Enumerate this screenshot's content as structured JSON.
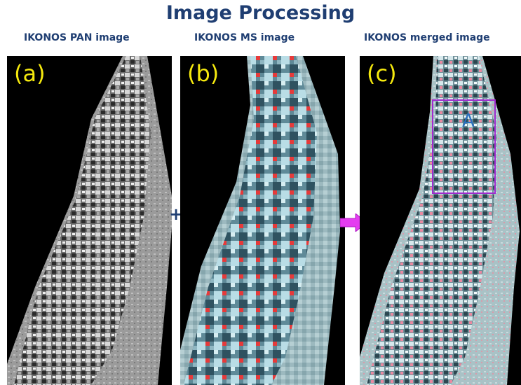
{
  "title": "Image Processing",
  "panels": [
    {
      "label": "(a)",
      "caption": "IKONOS PAN image"
    },
    {
      "label": "(b)",
      "caption": "IKONOS MS image"
    },
    {
      "label": "(c)",
      "caption": "IKONOS merged image"
    }
  ],
  "operator": "+",
  "region": {
    "label": "A"
  },
  "colors": {
    "title": "#1f3e72",
    "panel_label": "#f5e90e",
    "region_box": "#a02ad0",
    "region_label": "#2a6fbd",
    "arrow": "#e43cf0",
    "background": "#000000"
  }
}
